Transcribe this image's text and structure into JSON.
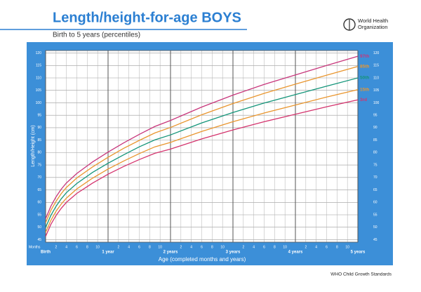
{
  "header": {
    "title": "Length/height-for-age BOYS",
    "subtitle": "Birth to 5 years (percentiles)",
    "logo_text": [
      "World Health",
      "Organization"
    ]
  },
  "footer": "WHO Child Growth Standards",
  "chart_data": {
    "type": "line",
    "x_label": "Age (completed months and years)",
    "x_unit_label": "Months",
    "y_label": "Length/Height (cm)",
    "x": [
      0,
      1,
      2,
      3,
      4,
      6,
      9,
      12,
      15,
      18,
      21,
      24,
      30,
      36,
      42,
      48,
      54,
      60
    ],
    "series": [
      {
        "name": "97th",
        "color": "#c8377c",
        "values": [
          53.4,
          58.4,
          62.2,
          65.3,
          67.8,
          71.6,
          76.2,
          80.2,
          83.9,
          87.3,
          90.5,
          92.9,
          98.3,
          103.1,
          107.4,
          111.2,
          115.0,
          118.7
        ]
      },
      {
        "name": "85th",
        "color": "#e9962f",
        "values": [
          51.8,
          56.7,
          60.4,
          63.5,
          66.0,
          69.8,
          74.2,
          78.1,
          81.7,
          84.9,
          87.9,
          90.1,
          95.2,
          99.7,
          103.8,
          107.5,
          111.1,
          114.6
        ]
      },
      {
        "name": "50th",
        "color": "#14957a",
        "values": [
          49.9,
          54.7,
          58.4,
          61.4,
          63.9,
          67.6,
          72.0,
          75.7,
          79.1,
          82.3,
          85.1,
          87.1,
          91.9,
          96.1,
          99.9,
          103.3,
          106.7,
          110.0
        ]
      },
      {
        "name": "15th",
        "color": "#e9962f",
        "values": [
          47.9,
          52.7,
          56.4,
          59.3,
          61.7,
          65.4,
          69.7,
          73.4,
          76.6,
          79.6,
          82.3,
          84.1,
          88.5,
          92.4,
          95.9,
          99.1,
          102.3,
          105.3
        ]
      },
      {
        "name": "3rd",
        "color": "#d4346e",
        "values": [
          46.3,
          51.1,
          54.7,
          57.6,
          60.0,
          63.6,
          67.7,
          71.3,
          74.4,
          77.2,
          79.7,
          81.4,
          85.5,
          89.1,
          92.4,
          95.4,
          98.4,
          101.2
        ]
      }
    ],
    "xlim": [
      0,
      60
    ],
    "ylim": [
      44,
      121
    ],
    "xticks": [
      {
        "value": 0,
        "label": "Birth"
      },
      2,
      4,
      6,
      8,
      10,
      {
        "value": 12,
        "label": "1 year"
      },
      {
        "value": 14,
        "label": "2"
      },
      {
        "value": 16,
        "label": "4"
      },
      {
        "value": 18,
        "label": "6"
      },
      {
        "value": 20,
        "label": "8"
      },
      {
        "value": 22,
        "label": "10"
      },
      {
        "value": 24,
        "label": "2 years"
      },
      {
        "value": 26,
        "label": "2"
      },
      {
        "value": 28,
        "label": "4"
      },
      {
        "value": 30,
        "label": "6"
      },
      {
        "value": 32,
        "label": "8"
      },
      {
        "value": 34,
        "label": "10"
      },
      {
        "value": 36,
        "label": "3 years"
      },
      {
        "value": 38,
        "label": "2"
      },
      {
        "value": 40,
        "label": "4"
      },
      {
        "value": 42,
        "label": "6"
      },
      {
        "value": 44,
        "label": "8"
      },
      {
        "value": 46,
        "label": "10"
      },
      {
        "value": 48,
        "label": "4 years"
      },
      {
        "value": 50,
        "label": "2"
      },
      {
        "value": 52,
        "label": "4"
      },
      {
        "value": 54,
        "label": "6"
      },
      {
        "value": 56,
        "label": "8"
      },
      {
        "value": 58,
        "label": "10"
      },
      {
        "value": 60,
        "label": "5 years"
      }
    ],
    "yticks": [
      45,
      50,
      55,
      60,
      65,
      70,
      75,
      80,
      85,
      90,
      95,
      100,
      105,
      110,
      115,
      120
    ],
    "grid": true
  }
}
